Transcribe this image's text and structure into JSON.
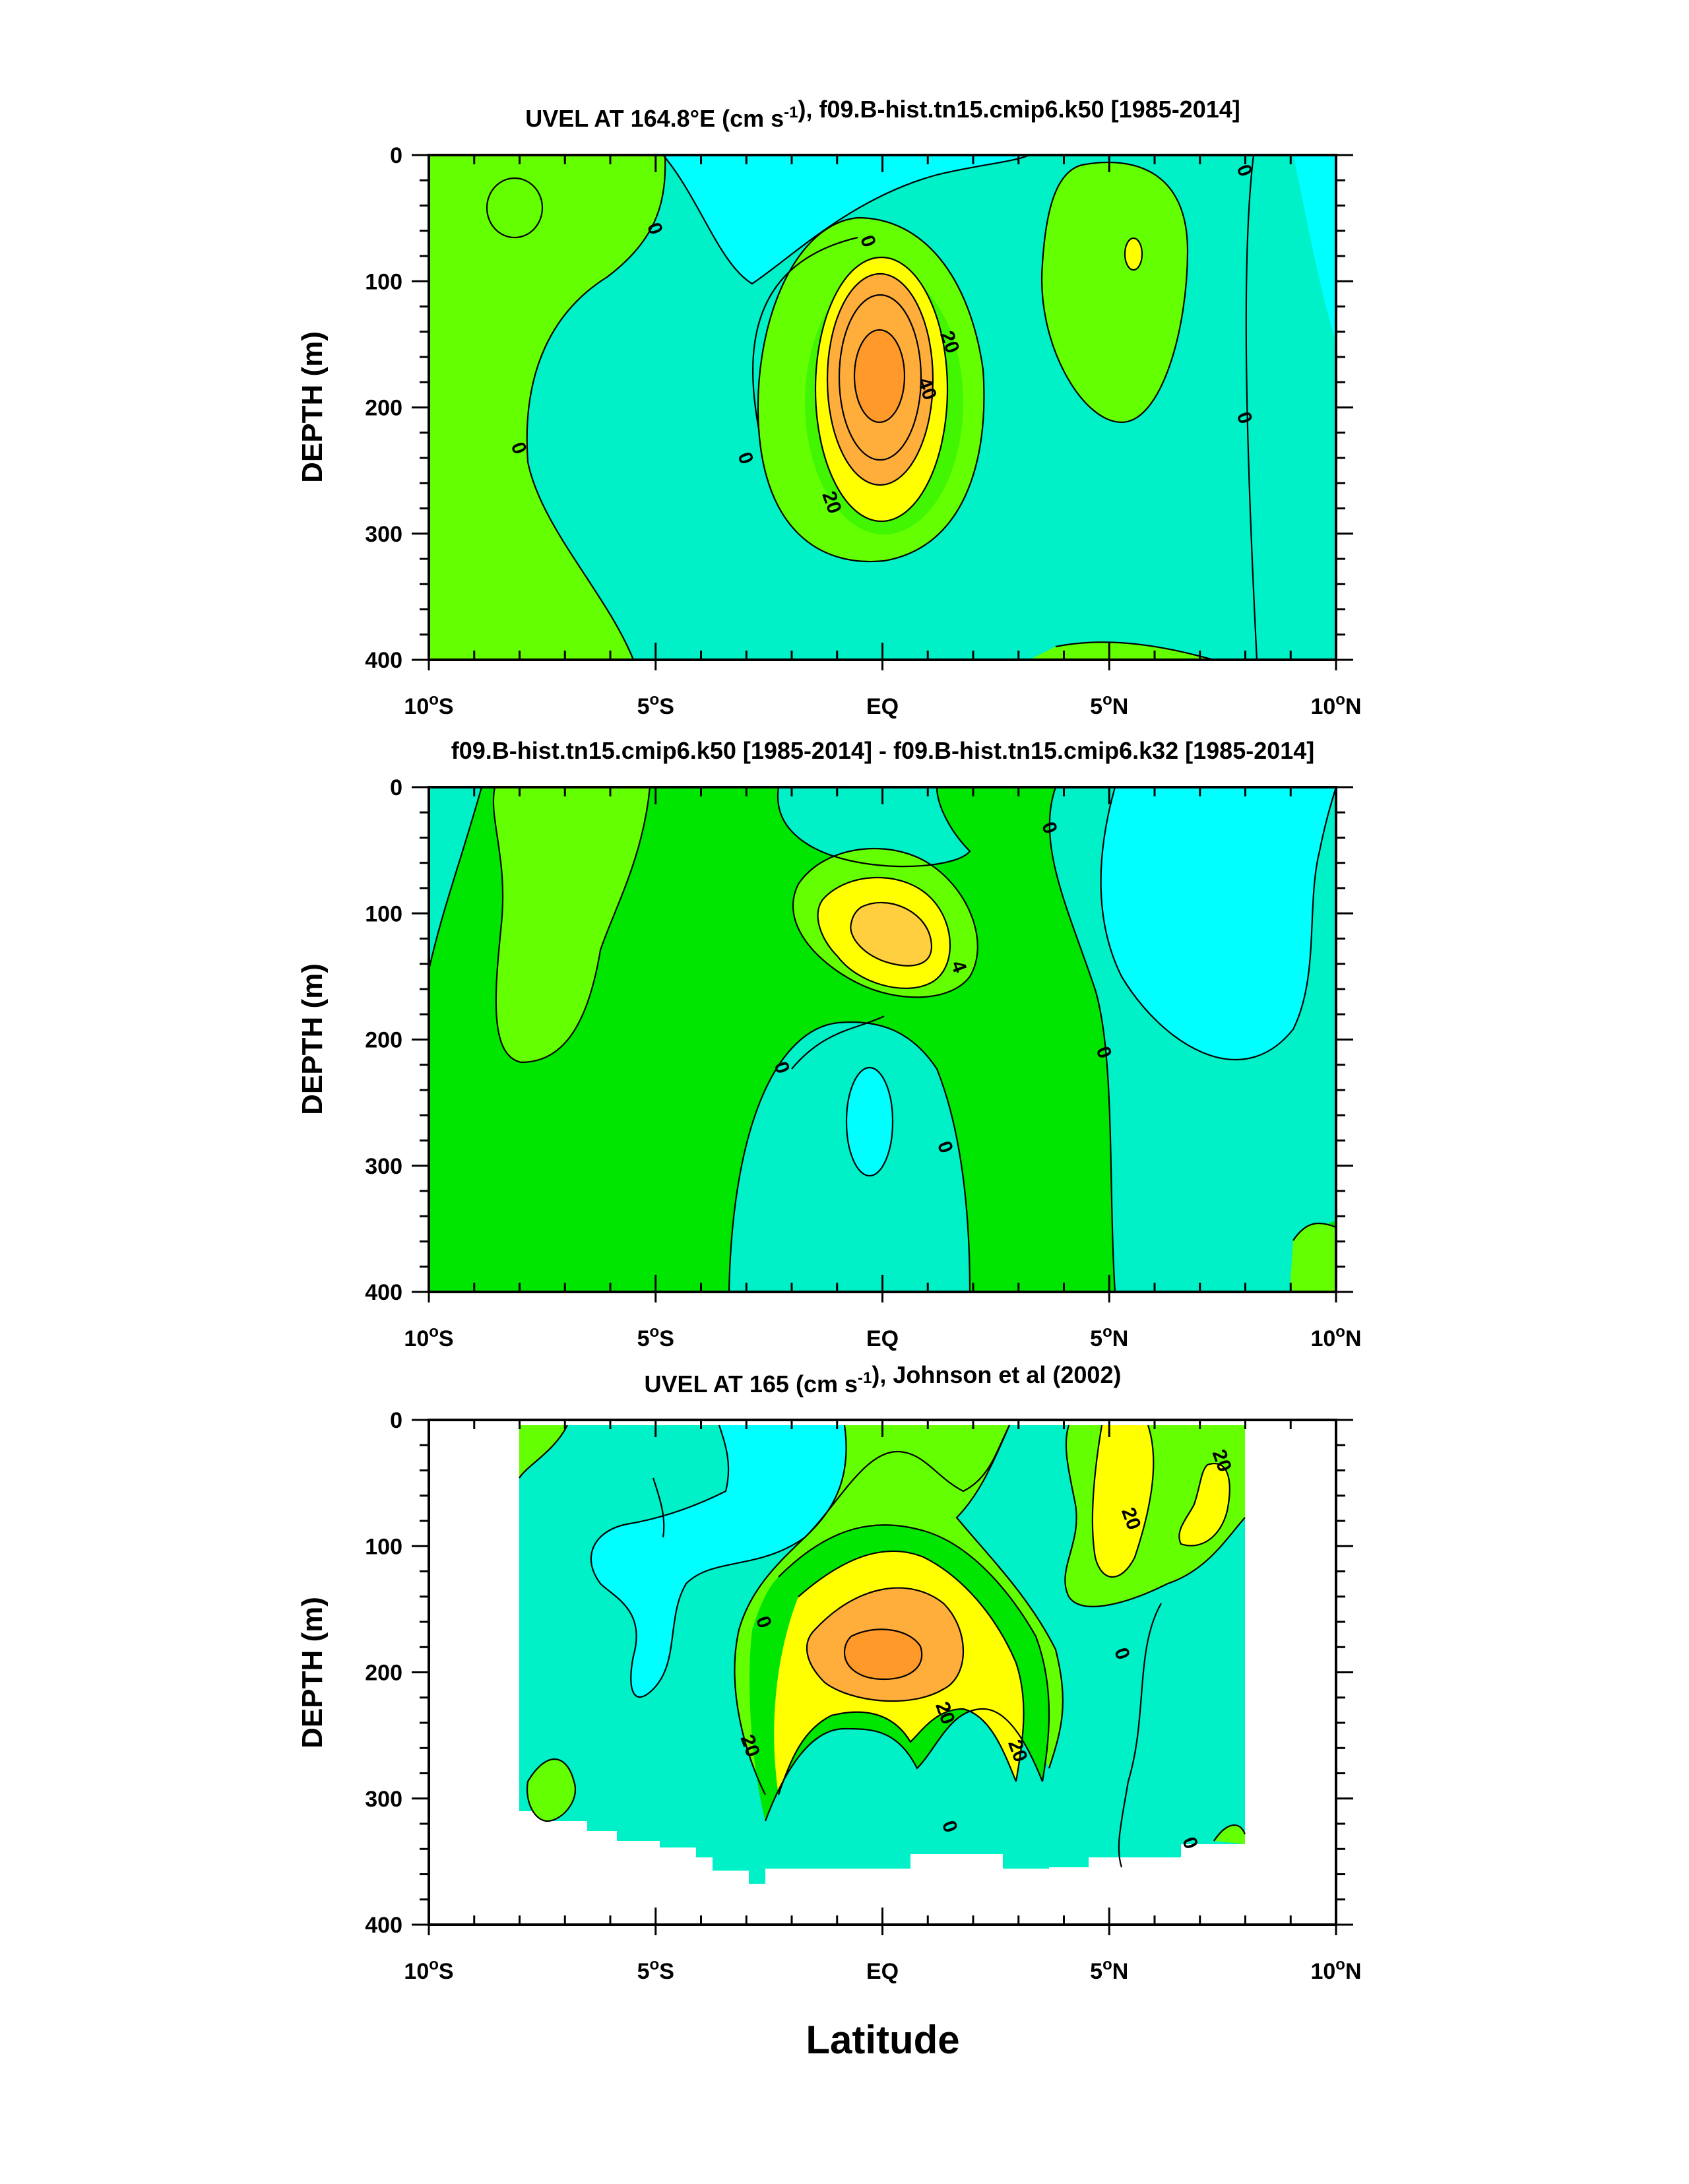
{
  "figure": {
    "xlabel": "Latitude",
    "colors": {
      "level_lt_neg": "#00ffff",
      "level_neg": "#00f0c8",
      "level_pos": "#64ff00",
      "level_mid": "#00e600",
      "level_hi": "#ffff00",
      "level_max": "#ffae3c",
      "contour": "#000000",
      "frame": "#000000"
    }
  },
  "chart_data": [
    {
      "type": "heatmap",
      "title": "UVEL AT 164.8°E (cm s-1), f09.B-hist.tn15.cmip6.k50 [1985-2014]",
      "ylabel": "DEPTH (m)",
      "xlabel": "",
      "xlim": [
        -10,
        10
      ],
      "ylim": [
        400,
        0
      ],
      "x_ticks": [
        -10,
        -5,
        0,
        5,
        10
      ],
      "x_tick_labels": [
        "10°S",
        "5°S",
        "EQ",
        "5°N",
        "10°N"
      ],
      "y_ticks": [
        0,
        100,
        200,
        300,
        400
      ],
      "y_tick_labels": [
        "0",
        "100",
        "200",
        "300",
        "400"
      ],
      "grid": false,
      "contour_interval": 10,
      "contour_labels": [
        {
          "text": "0",
          "lat": -8.0,
          "depth": 232
        },
        {
          "text": "0",
          "lat": -5.0,
          "depth": 58
        },
        {
          "text": "0",
          "lat": -3.0,
          "depth": 240
        },
        {
          "text": "0",
          "lat": -0.3,
          "depth": 68
        },
        {
          "text": "20",
          "lat": 1.5,
          "depth": 148
        },
        {
          "text": "40",
          "lat": 1.0,
          "depth": 185
        },
        {
          "text": "20",
          "lat": -1.1,
          "depth": 275
        },
        {
          "text": "0",
          "lat": 8.0,
          "depth": 12
        },
        {
          "text": "0",
          "lat": 8.0,
          "depth": 208
        }
      ],
      "features": [
        {
          "kind": "max",
          "lat": 0.0,
          "depth": 180,
          "value": 55
        },
        {
          "kind": "max",
          "lat": 5.5,
          "depth": 80,
          "value": 12
        },
        {
          "kind": "max",
          "lat": -8.0,
          "depth": 40,
          "value": 5
        },
        {
          "kind": "min",
          "lat": -3.0,
          "depth": 20,
          "value": -12
        }
      ]
    },
    {
      "type": "heatmap",
      "title": "f09.B-hist.tn15.cmip6.k50 [1985-2014] - f09.B-hist.tn15.cmip6.k32 [1985-2014]",
      "ylabel": "DEPTH (m)",
      "xlabel": "",
      "xlim": [
        -10,
        10
      ],
      "ylim": [
        400,
        0
      ],
      "x_ticks": [
        -10,
        -5,
        0,
        5,
        10
      ],
      "x_tick_labels": [
        "10°S",
        "5°S",
        "EQ",
        "5°N",
        "10°N"
      ],
      "y_ticks": [
        0,
        100,
        200,
        300,
        400
      ],
      "y_tick_labels": [
        "0",
        "100",
        "200",
        "300",
        "400"
      ],
      "grid": false,
      "contour_interval": 2,
      "contour_labels": [
        {
          "text": "0",
          "lat": 3.7,
          "depth": 32
        },
        {
          "text": "4",
          "lat": 1.7,
          "depth": 142
        },
        {
          "text": "0",
          "lat": -2.2,
          "depth": 222
        },
        {
          "text": "0",
          "lat": 4.9,
          "depth": 210
        },
        {
          "text": "0",
          "lat": 1.4,
          "depth": 285
        }
      ],
      "features": [
        {
          "kind": "max",
          "lat": 0.3,
          "depth": 115,
          "value": 6
        },
        {
          "kind": "max",
          "lat": -8.0,
          "depth": 100,
          "value": 2
        },
        {
          "kind": "min",
          "lat": 7.0,
          "depth": 120,
          "value": -2
        },
        {
          "kind": "min",
          "lat": -0.7,
          "depth": 275,
          "value": -2
        }
      ]
    },
    {
      "type": "heatmap",
      "title": "UVEL AT 165 (cm s-1), Johnson et al (2002)",
      "ylabel": "DEPTH (m)",
      "xlabel": "Latitude",
      "xlim": [
        -10,
        10
      ],
      "ylim": [
        400,
        0
      ],
      "x_ticks": [
        -10,
        -5,
        0,
        5,
        10
      ],
      "x_tick_labels": [
        "10°S",
        "5°S",
        "EQ",
        "5°N",
        "10°N"
      ],
      "y_ticks": [
        0,
        100,
        200,
        300,
        400
      ],
      "y_tick_labels": [
        "0",
        "100",
        "200",
        "300",
        "400"
      ],
      "grid": false,
      "contour_interval": 10,
      "data_lat_range": [
        -8,
        8
      ],
      "contour_labels": [
        {
          "text": "0",
          "lat": -2.6,
          "depth": 160
        },
        {
          "text": "20",
          "lat": 1.4,
          "depth": 232
        },
        {
          "text": "20",
          "lat": -2.9,
          "depth": 258
        },
        {
          "text": "20",
          "lat": 3.0,
          "depth": 262
        },
        {
          "text": "0",
          "lat": 1.5,
          "depth": 322
        },
        {
          "text": "0",
          "lat": 5.3,
          "depth": 185
        },
        {
          "text": "20",
          "lat": 5.5,
          "depth": 78
        },
        {
          "text": "20",
          "lat": 7.5,
          "depth": 32
        },
        {
          "text": "0",
          "lat": 6.8,
          "depth": 335
        }
      ],
      "features": [
        {
          "kind": "max",
          "lat": -0.3,
          "depth": 185,
          "value": 40
        },
        {
          "kind": "max",
          "lat": 5.5,
          "depth": 60,
          "value": 25
        },
        {
          "kind": "max",
          "lat": 7.4,
          "depth": 60,
          "value": 20
        },
        {
          "kind": "min",
          "lat": -3.5,
          "depth": 40,
          "value": -12
        }
      ]
    }
  ]
}
